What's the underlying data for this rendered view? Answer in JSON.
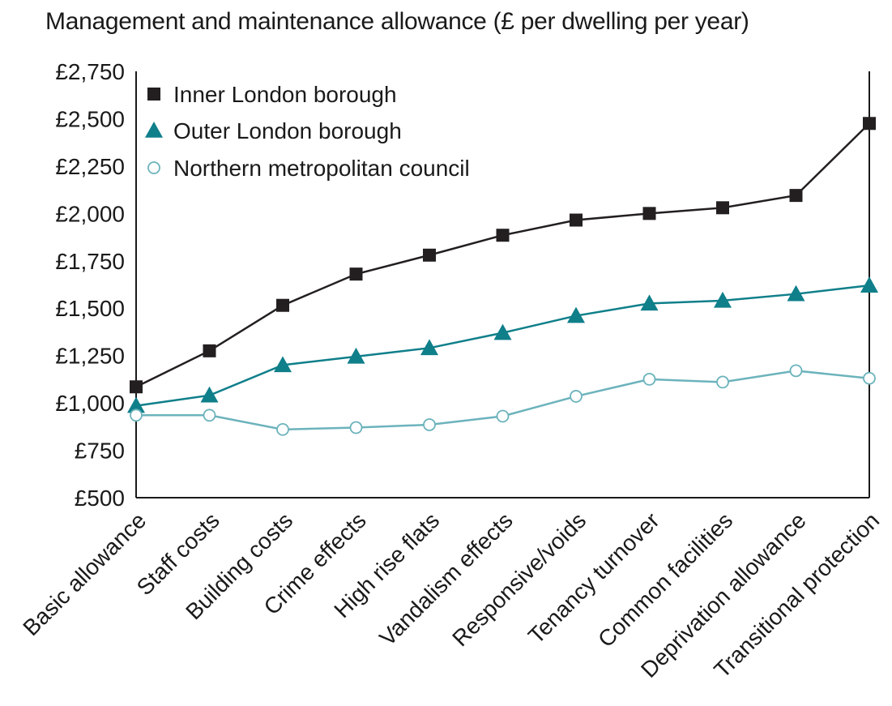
{
  "chart_data": {
    "type": "line",
    "title": "Management and maintenance allowance (£ per dwelling per year)",
    "xlabel": "",
    "ylabel": "",
    "ylim": [
      500,
      2750
    ],
    "yticks": [
      500,
      750,
      1000,
      1250,
      1500,
      1750,
      2000,
      2250,
      2500,
      2750
    ],
    "ytick_labels": [
      "£500",
      "£750",
      "£1,000",
      "£1,250",
      "£1,500",
      "£1,750",
      "£2,000",
      "£2,250",
      "£2,500",
      "£2,750"
    ],
    "grid": false,
    "legend_position": "top-left",
    "categories": [
      "Basic allowance",
      "Staff costs",
      "Building costs",
      "Crime effects",
      "High rise flats",
      "Vandalism effects",
      "Responsive/voids",
      "Tenancy turnover",
      "Common facilities",
      "Deprivation allowance",
      "Transitional protection"
    ],
    "series": [
      {
        "name": "Inner London borough",
        "marker": "square",
        "color": "#231f20",
        "values": [
          1085,
          1275,
          1515,
          1680,
          1780,
          1885,
          1965,
          2000,
          2030,
          2095,
          2475
        ]
      },
      {
        "name": "Outer London borough",
        "marker": "triangle",
        "color": "#0f7f8a",
        "values": [
          985,
          1040,
          1200,
          1245,
          1290,
          1370,
          1460,
          1525,
          1540,
          1575,
          1620
        ]
      },
      {
        "name": "Northern metropolitan council",
        "marker": "circle",
        "color": "#6cb3bc",
        "values": [
          935,
          935,
          860,
          870,
          885,
          930,
          1035,
          1125,
          1110,
          1170,
          1130
        ]
      }
    ]
  }
}
